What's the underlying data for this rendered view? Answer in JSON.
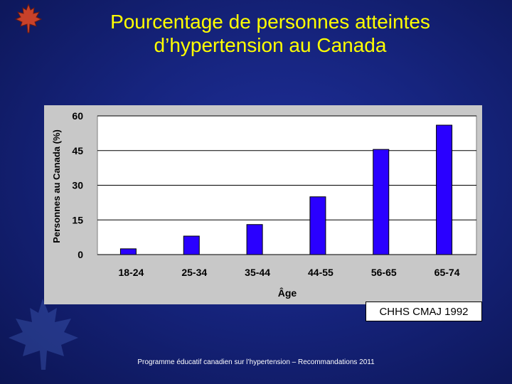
{
  "title_line1": "Pourcentage de personnes atteintes",
  "title_line2": "d’hypertension au Canada",
  "source": "CHHS CMAJ 1992",
  "footer": "Programme éducatif canadien sur l’hypertension – Recommandations 2011",
  "colors": {
    "bar": "#2a00ff",
    "bar_outline": "#000000",
    "axis_text": "#000000",
    "plot_bg": "#ffffff",
    "title": "#ffff00"
  },
  "icons": {
    "logo": "maple-leaf-logo-icon",
    "watermark": "maple-leaf-watermark-icon"
  },
  "chart_data": {
    "type": "bar",
    "categories": [
      "18-24",
      "25-34",
      "35-44",
      "44-55",
      "56-65",
      "65-74"
    ],
    "values": [
      2.5,
      8,
      13,
      25,
      45.5,
      56
    ],
    "title": "",
    "xlabel": "Âge",
    "ylabel": "Personnes au Canada (%)",
    "ylim": [
      0,
      60
    ],
    "yticks": [
      0,
      15,
      30,
      45,
      60
    ],
    "grid": true,
    "legend": "none"
  }
}
